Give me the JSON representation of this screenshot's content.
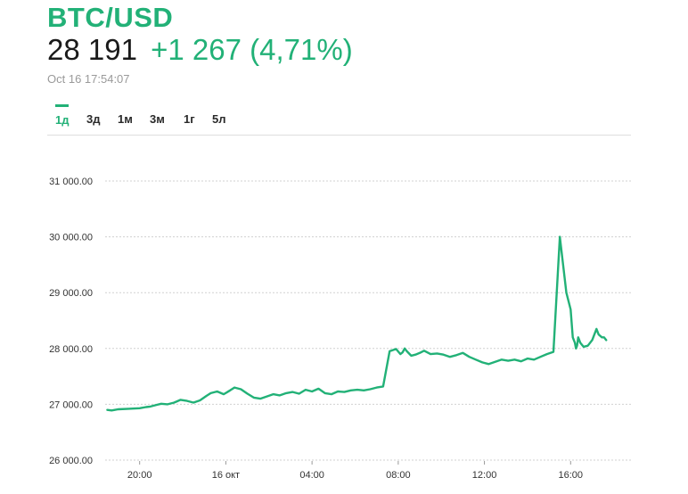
{
  "header": {
    "symbol": "BTC/USD",
    "price": "28 191",
    "change": "+1 267 (4,71%)",
    "timestamp": "Oct 16 17:54:07"
  },
  "tabs": [
    {
      "label": "1д",
      "active": true
    },
    {
      "label": "3д",
      "active": false
    },
    {
      "label": "1м",
      "active": false
    },
    {
      "label": "3м",
      "active": false
    },
    {
      "label": "1г",
      "active": false
    },
    {
      "label": "5л",
      "active": false
    }
  ],
  "colors": {
    "accent": "#22b177",
    "line": "#22b177",
    "grid": "#d0d0d0"
  },
  "chart_data": {
    "type": "line",
    "ylim": [
      26000,
      31000
    ],
    "xlim": [
      18.4,
      42.8
    ],
    "y_ticks": [
      {
        "value": 31000,
        "label": "31 000.00"
      },
      {
        "value": 30000,
        "label": "30 000.00"
      },
      {
        "value": 29000,
        "label": "29 000.00"
      },
      {
        "value": 28000,
        "label": "28 000.00"
      },
      {
        "value": 27000,
        "label": "27 000.00"
      },
      {
        "value": 26000,
        "label": "26 000.00"
      }
    ],
    "x_ticks": [
      {
        "value": 20,
        "label": "20:00"
      },
      {
        "value": 24,
        "label": "16 окт"
      },
      {
        "value": 28,
        "label": "04:00"
      },
      {
        "value": 32,
        "label": "08:00"
      },
      {
        "value": 36,
        "label": "12:00"
      },
      {
        "value": 40,
        "label": "16:00"
      }
    ],
    "grid": true,
    "series": [
      {
        "x": [
          18.5,
          18.7,
          19.0,
          19.5,
          20.0,
          20.3,
          20.5,
          20.8,
          21.0,
          21.3,
          21.6,
          21.9,
          22.2,
          22.5,
          22.8,
          23.1,
          23.3,
          23.6,
          23.9,
          24.2,
          24.4,
          24.7,
          25.0,
          25.3,
          25.6,
          25.9,
          26.2,
          26.5,
          26.8,
          27.1,
          27.4,
          27.7,
          28.0,
          28.3,
          28.6,
          28.9,
          29.2,
          29.5,
          29.8,
          30.1,
          30.4,
          30.7,
          31.0,
          31.3,
          31.6,
          31.9,
          32.1,
          32.2,
          32.3,
          32.4,
          32.6,
          32.8,
          33.0,
          33.2,
          33.5,
          33.8,
          34.1,
          34.4,
          34.7,
          35.0,
          35.3,
          35.6,
          35.9,
          36.2,
          36.5,
          36.8,
          37.1,
          37.4,
          37.7,
          38.0,
          38.3,
          38.6,
          38.9,
          39.2,
          39.5,
          39.8,
          40.0,
          40.1,
          40.2,
          40.25,
          40.3,
          40.35,
          40.45,
          40.6,
          40.8,
          41.0,
          41.2,
          41.3,
          41.45,
          41.55,
          41.65
        ],
        "y": [
          26900,
          26890,
          26910,
          26920,
          26930,
          26950,
          26960,
          26990,
          27010,
          27000,
          27030,
          27080,
          27060,
          27030,
          27070,
          27150,
          27200,
          27230,
          27180,
          27250,
          27300,
          27270,
          27190,
          27120,
          27100,
          27140,
          27180,
          27160,
          27200,
          27220,
          27190,
          27260,
          27230,
          27280,
          27200,
          27180,
          27230,
          27220,
          27250,
          27260,
          27250,
          27270,
          27300,
          27320,
          27950,
          27990,
          27900,
          27930,
          28000,
          27950,
          27870,
          27890,
          27920,
          27960,
          27900,
          27910,
          27890,
          27850,
          27880,
          27920,
          27850,
          27800,
          27750,
          27720,
          27760,
          27800,
          27780,
          27800,
          27770,
          27820,
          27800,
          27850,
          27900,
          27940,
          30000,
          29000,
          28700,
          28200,
          28100,
          28000,
          28050,
          28200,
          28100,
          28030,
          28050,
          28150,
          28350,
          28250,
          28200,
          28200,
          28150
        ]
      }
    ]
  }
}
